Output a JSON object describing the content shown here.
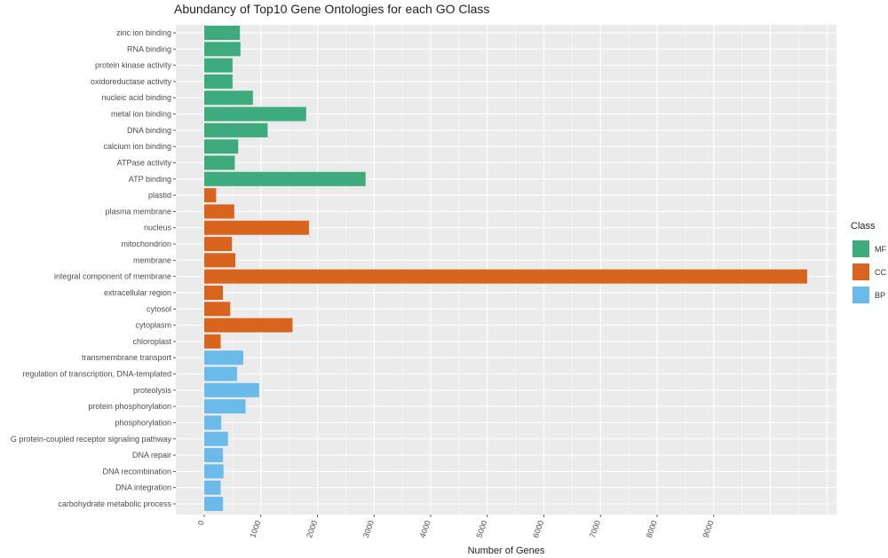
{
  "chart_data": {
    "type": "bar",
    "orientation": "horizontal",
    "title": "Abundancy of Top10 Gene Ontologies for each GO Class",
    "xlabel": "Number of Genes",
    "ylabel": "",
    "xlim": [
      0,
      11100
    ],
    "xticks": [
      "0",
      "1000",
      "2000",
      "3000",
      "4000",
      "5000",
      "6000",
      "7000",
      "8000",
      "9000"
    ],
    "grid": true,
    "legend": {
      "title": "Class",
      "position": "right",
      "items": [
        {
          "label": "MF",
          "color": "#3DAB7B"
        },
        {
          "label": "CC",
          "color": "#D9641E"
        },
        {
          "label": "BP",
          "color": "#6BBBEA"
        }
      ]
    },
    "bars": [
      {
        "category": "zinc ion binding",
        "value": 630,
        "class": "MF"
      },
      {
        "category": "RNA binding",
        "value": 640,
        "class": "MF"
      },
      {
        "category": "protein kinase activity",
        "value": 500,
        "class": "MF"
      },
      {
        "category": "oxidoreductase activity",
        "value": 500,
        "class": "MF"
      },
      {
        "category": "nucleic acid binding",
        "value": 860,
        "class": "MF"
      },
      {
        "category": "metal ion binding",
        "value": 1800,
        "class": "MF"
      },
      {
        "category": "DNA binding",
        "value": 1120,
        "class": "MF"
      },
      {
        "category": "calcium ion binding",
        "value": 600,
        "class": "MF"
      },
      {
        "category": "ATPase activity",
        "value": 540,
        "class": "MF"
      },
      {
        "category": "ATP binding",
        "value": 2850,
        "class": "MF"
      },
      {
        "category": "plastid",
        "value": 210,
        "class": "CC"
      },
      {
        "category": "plasma membrane",
        "value": 530,
        "class": "CC"
      },
      {
        "category": "nucleus",
        "value": 1850,
        "class": "CC"
      },
      {
        "category": "mitochondrion",
        "value": 490,
        "class": "CC"
      },
      {
        "category": "membrane",
        "value": 550,
        "class": "CC"
      },
      {
        "category": "integral component of membrane",
        "value": 10650,
        "class": "CC"
      },
      {
        "category": "extracellular region",
        "value": 330,
        "class": "CC"
      },
      {
        "category": "cytosol",
        "value": 460,
        "class": "CC"
      },
      {
        "category": "cytoplasm",
        "value": 1560,
        "class": "CC"
      },
      {
        "category": "chloroplast",
        "value": 290,
        "class": "CC"
      },
      {
        "category": "transmembrane transport",
        "value": 690,
        "class": "BP"
      },
      {
        "category": "regulation of transcription, DNA-templated",
        "value": 580,
        "class": "BP"
      },
      {
        "category": "proteolysis",
        "value": 970,
        "class": "BP"
      },
      {
        "category": "protein phosphorylation",
        "value": 730,
        "class": "BP"
      },
      {
        "category": "phosphorylation",
        "value": 300,
        "class": "BP"
      },
      {
        "category": "G protein-coupled receptor signaling pathway",
        "value": 420,
        "class": "BP"
      },
      {
        "category": "DNA repair",
        "value": 330,
        "class": "BP"
      },
      {
        "category": "DNA recombination",
        "value": 340,
        "class": "BP"
      },
      {
        "category": "DNA integration",
        "value": 290,
        "class": "BP"
      },
      {
        "category": "carbohydrate metabolic process",
        "value": 330,
        "class": "BP"
      }
    ]
  }
}
